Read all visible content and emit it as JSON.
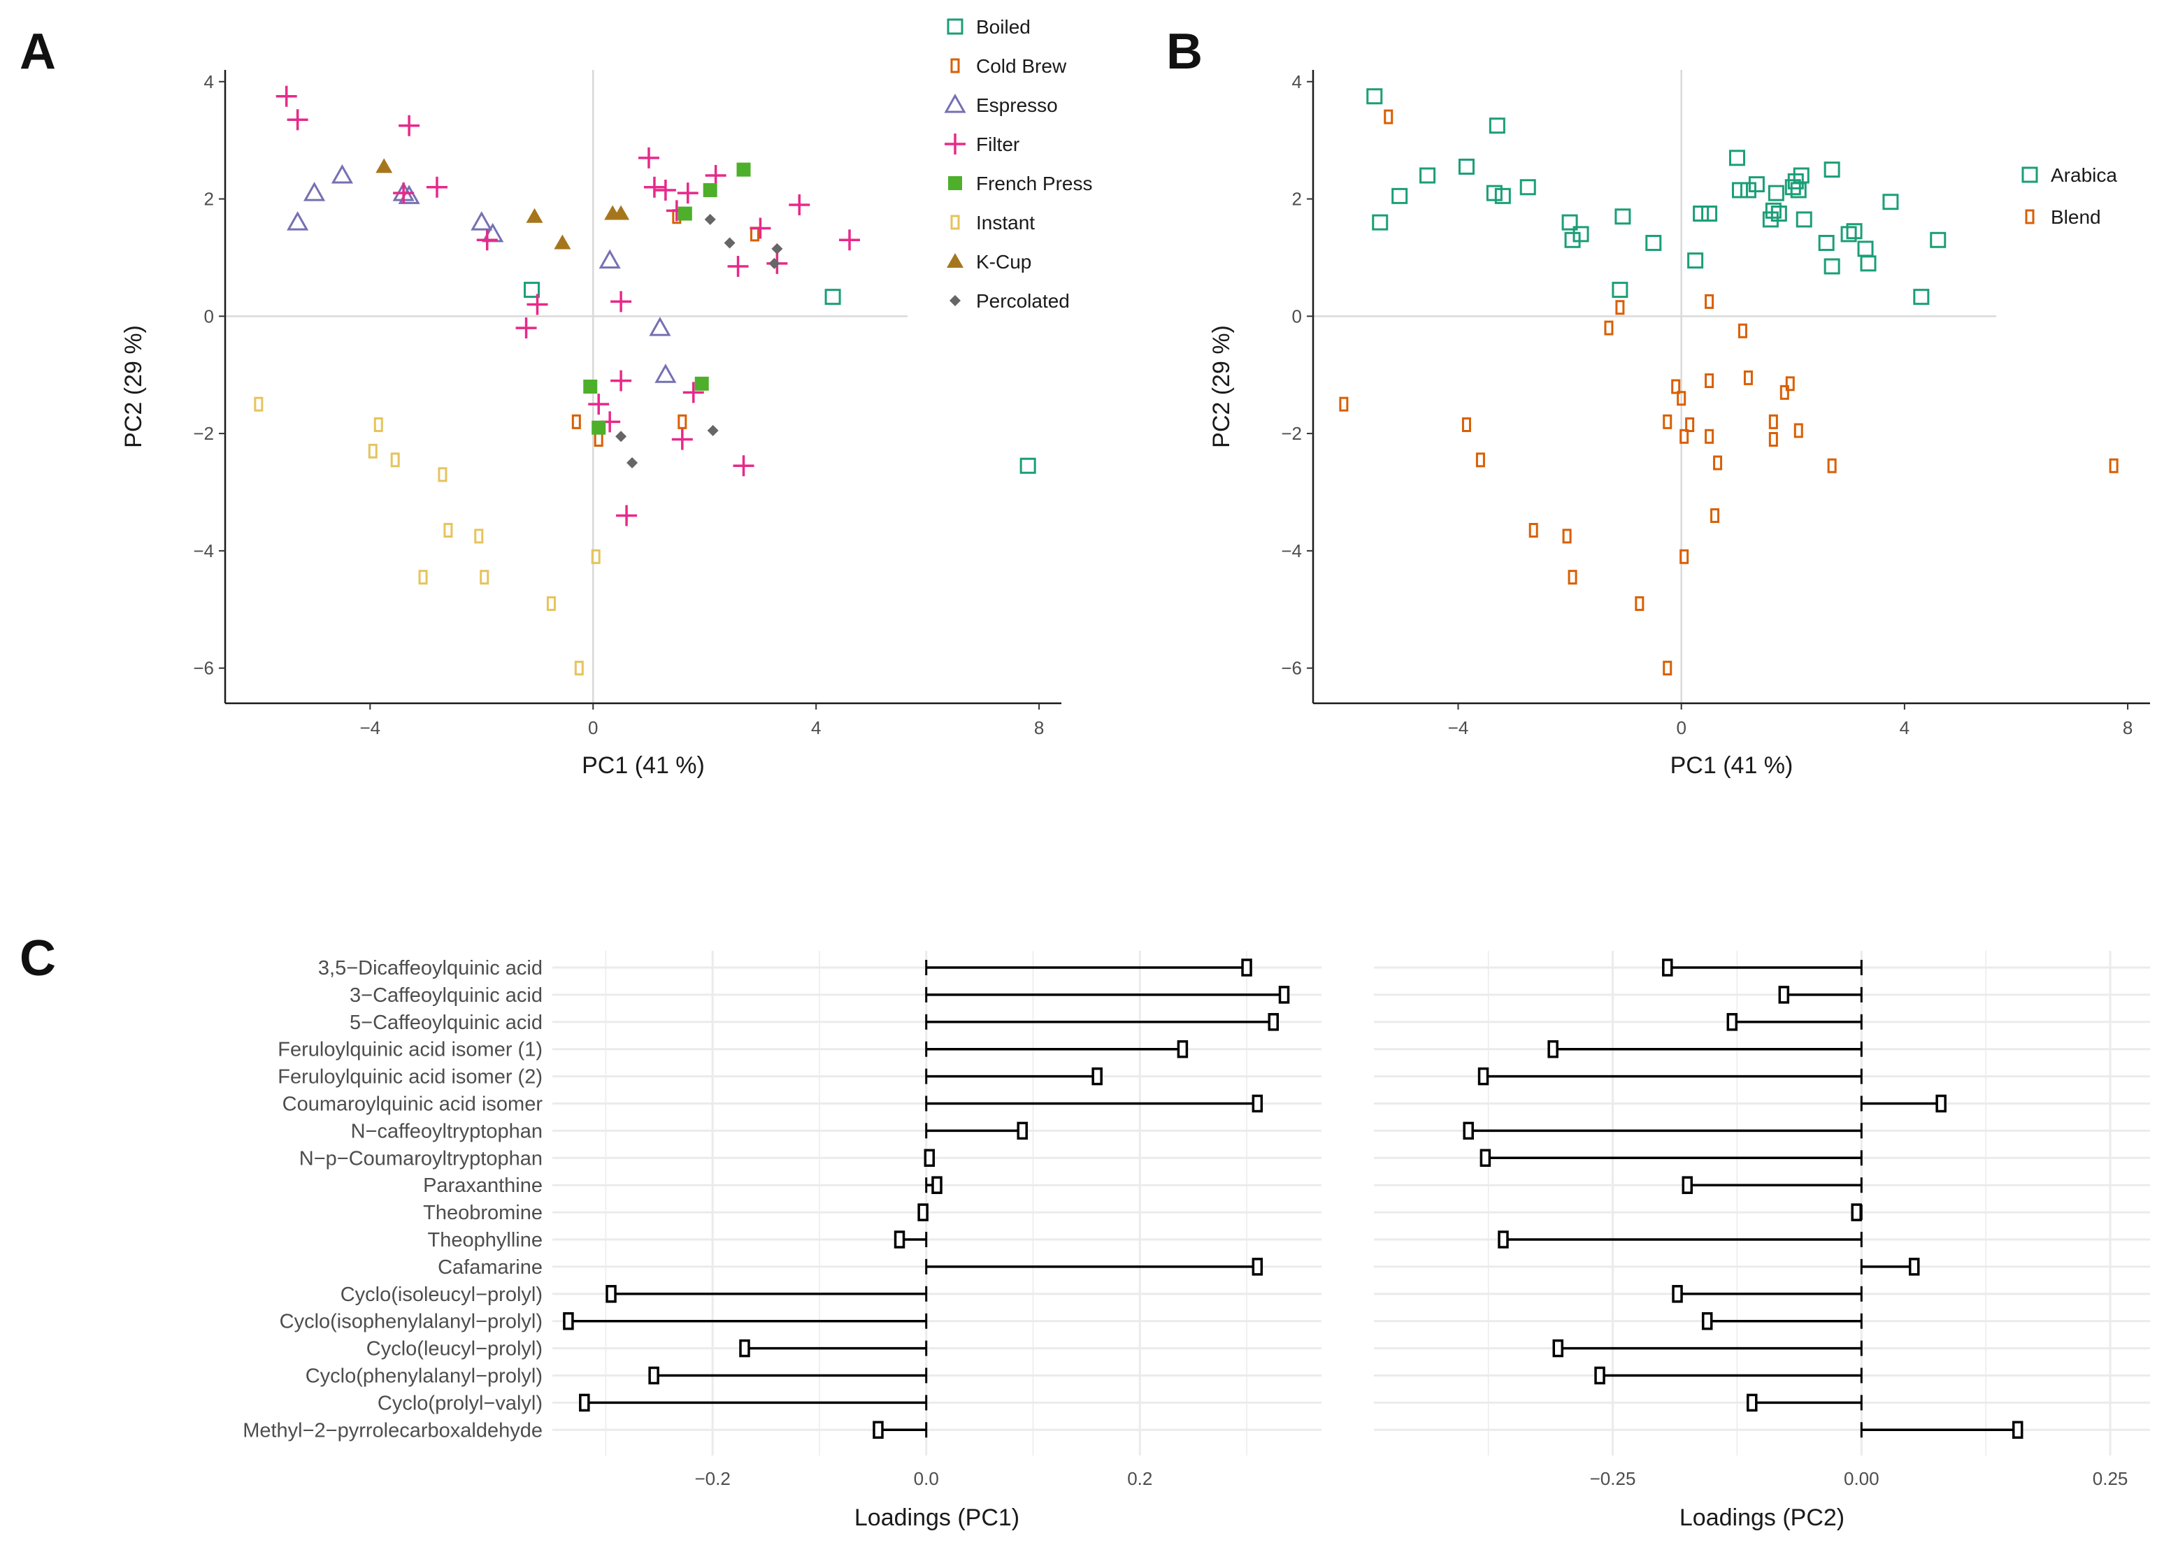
{
  "panels": {
    "a": "A",
    "b": "B",
    "c": "C"
  },
  "colors": {
    "Boiled": "#1b9e77",
    "Cold Brew": "#d95f02",
    "Espresso": "#7570b3",
    "Filter": "#e7298a",
    "French Press": "#4daf2a",
    "Instant": "#e6c35c",
    "K-Cup": "#a6761d",
    "Percolated": "#666666",
    "Arabica": "#1b9e77",
    "Blend": "#d95f02",
    "refline": "#d9d9d9",
    "grid": "#ebebeb"
  },
  "chart_data": [
    {
      "id": "A",
      "type": "scatter",
      "xlabel": "PC1 (41 %)",
      "ylabel": "PC2 (29 %)",
      "xlim": [
        -6.6,
        8.4
      ],
      "ylim": [
        -6.6,
        4.2
      ],
      "xticks": [
        -4,
        0,
        4,
        8
      ],
      "yticks": [
        -6,
        -4,
        -2,
        0,
        2,
        4
      ],
      "legend_position": "top-right",
      "series": [
        {
          "name": "Boiled",
          "marker": "square-open",
          "points": [
            [
              -1.1,
              0.45
            ],
            [
              4.3,
              0.33
            ],
            [
              7.8,
              -2.55
            ]
          ]
        },
        {
          "name": "Cold Brew",
          "marker": "rect-open",
          "points": [
            [
              -0.3,
              -1.8
            ],
            [
              0.1,
              -2.1
            ],
            [
              1.6,
              -1.8
            ],
            [
              1.5,
              1.7
            ],
            [
              2.9,
              1.4
            ]
          ]
        },
        {
          "name": "Espresso",
          "marker": "triangle-open",
          "points": [
            [
              -5.3,
              1.6
            ],
            [
              -5.0,
              2.1
            ],
            [
              -4.5,
              2.4
            ],
            [
              -3.4,
              2.1
            ],
            [
              -3.3,
              2.05
            ],
            [
              -2.0,
              1.6
            ],
            [
              -1.8,
              1.4
            ],
            [
              0.3,
              0.95
            ],
            [
              1.2,
              -0.2
            ],
            [
              1.3,
              -1.0
            ]
          ]
        },
        {
          "name": "Filter",
          "marker": "plus",
          "points": [
            [
              -5.5,
              3.75
            ],
            [
              -5.3,
              3.35
            ],
            [
              -3.3,
              3.25
            ],
            [
              -3.4,
              2.1
            ],
            [
              -2.8,
              2.2
            ],
            [
              -1.9,
              1.3
            ],
            [
              -1.2,
              -0.2
            ],
            [
              -1.0,
              0.2
            ],
            [
              1.0,
              2.7
            ],
            [
              1.1,
              2.2
            ],
            [
              1.3,
              2.15
            ],
            [
              1.7,
              2.1
            ],
            [
              2.2,
              2.4
            ],
            [
              1.5,
              1.8
            ],
            [
              3.0,
              1.5
            ],
            [
              3.3,
              0.9
            ],
            [
              3.7,
              1.9
            ],
            [
              4.6,
              1.3
            ],
            [
              2.6,
              0.85
            ],
            [
              0.5,
              0.25
            ],
            [
              0.5,
              -1.1
            ],
            [
              0.1,
              -1.5
            ],
            [
              0.3,
              -1.8
            ],
            [
              1.8,
              -1.3
            ],
            [
              1.6,
              -2.1
            ],
            [
              2.7,
              -2.55
            ],
            [
              0.6,
              -3.4
            ]
          ]
        },
        {
          "name": "French Press",
          "marker": "square-filled",
          "points": [
            [
              2.7,
              2.5
            ],
            [
              2.1,
              2.15
            ],
            [
              1.65,
              1.75
            ],
            [
              -0.05,
              -1.2
            ],
            [
              1.95,
              -1.15
            ],
            [
              0.1,
              -1.9
            ]
          ]
        },
        {
          "name": "Instant",
          "marker": "rect-open",
          "points": [
            [
              -6.0,
              -1.5
            ],
            [
              -3.85,
              -1.85
            ],
            [
              -3.95,
              -2.3
            ],
            [
              -3.55,
              -2.45
            ],
            [
              -2.7,
              -2.7
            ],
            [
              -2.6,
              -3.65
            ],
            [
              -2.05,
              -3.75
            ],
            [
              -3.05,
              -4.45
            ],
            [
              -1.95,
              -4.45
            ],
            [
              -0.75,
              -4.9
            ],
            [
              0.05,
              -4.1
            ],
            [
              -0.25,
              -6.0
            ]
          ]
        },
        {
          "name": "K-Cup",
          "marker": "triangle-filled",
          "points": [
            [
              -3.75,
              2.55
            ],
            [
              -1.05,
              1.7
            ],
            [
              -0.55,
              1.25
            ],
            [
              0.35,
              1.75
            ],
            [
              0.5,
              1.75
            ]
          ]
        },
        {
          "name": "Percolated",
          "marker": "diamond-filled",
          "points": [
            [
              2.1,
              1.65
            ],
            [
              2.45,
              1.25
            ],
            [
              3.3,
              1.15
            ],
            [
              3.25,
              0.9
            ],
            [
              0.5,
              -2.05
            ],
            [
              0.7,
              -2.5
            ],
            [
              2.15,
              -1.95
            ]
          ]
        }
      ]
    },
    {
      "id": "B",
      "type": "scatter",
      "xlabel": "PC1 (41 %)",
      "ylabel": "PC2 (29 %)",
      "xlim": [
        -6.6,
        8.4
      ],
      "ylim": [
        -6.6,
        4.2
      ],
      "xticks": [
        -4,
        0,
        4,
        8
      ],
      "yticks": [
        -6,
        -4,
        -2,
        0,
        2,
        4
      ],
      "legend_position": "right",
      "series": [
        {
          "name": "Arabica",
          "marker": "square-open",
          "points": [
            [
              -5.5,
              3.75
            ],
            [
              -5.4,
              1.6
            ],
            [
              -5.05,
              2.05
            ],
            [
              -4.55,
              2.4
            ],
            [
              -3.85,
              2.55
            ],
            [
              -3.3,
              3.25
            ],
            [
              -3.35,
              2.1
            ],
            [
              -3.2,
              2.05
            ],
            [
              -2.75,
              2.2
            ],
            [
              -2.0,
              1.6
            ],
            [
              -1.95,
              1.3
            ],
            [
              -1.8,
              1.4
            ],
            [
              -1.05,
              1.7
            ],
            [
              -0.5,
              1.25
            ],
            [
              -1.1,
              0.45
            ],
            [
              0.25,
              0.95
            ],
            [
              0.35,
              1.75
            ],
            [
              0.5,
              1.75
            ],
            [
              1.0,
              2.7
            ],
            [
              1.05,
              2.15
            ],
            [
              1.2,
              2.15
            ],
            [
              1.35,
              2.25
            ],
            [
              1.6,
              1.65
            ],
            [
              1.65,
              1.8
            ],
            [
              1.7,
              2.1
            ],
            [
              1.75,
              1.75
            ],
            [
              2.0,
              2.2
            ],
            [
              2.05,
              2.3
            ],
            [
              2.1,
              2.15
            ],
            [
              2.15,
              2.4
            ],
            [
              2.2,
              1.65
            ],
            [
              2.6,
              1.25
            ],
            [
              2.7,
              2.5
            ],
            [
              2.7,
              0.85
            ],
            [
              3.0,
              1.4
            ],
            [
              3.1,
              1.45
            ],
            [
              3.3,
              1.15
            ],
            [
              3.35,
              0.9
            ],
            [
              3.75,
              1.95
            ],
            [
              4.3,
              0.33
            ],
            [
              4.6,
              1.3
            ]
          ]
        },
        {
          "name": "Blend",
          "marker": "rect-open",
          "points": [
            [
              -5.25,
              3.4
            ],
            [
              -6.05,
              -1.5
            ],
            [
              -3.85,
              -1.85
            ],
            [
              -3.6,
              -2.45
            ],
            [
              -2.65,
              -3.65
            ],
            [
              -2.05,
              -3.75
            ],
            [
              -1.95,
              -4.45
            ],
            [
              -1.3,
              -0.2
            ],
            [
              -1.1,
              0.15
            ],
            [
              -0.75,
              -4.9
            ],
            [
              -0.25,
              -1.8
            ],
            [
              -0.25,
              -6.0
            ],
            [
              -0.1,
              -1.2
            ],
            [
              0.0,
              -1.4
            ],
            [
              0.05,
              -2.05
            ],
            [
              0.05,
              -4.1
            ],
            [
              0.15,
              -1.85
            ],
            [
              0.5,
              0.25
            ],
            [
              0.5,
              -1.1
            ],
            [
              0.5,
              -2.05
            ],
            [
              0.65,
              -2.5
            ],
            [
              0.6,
              -3.4
            ],
            [
              1.1,
              -0.25
            ],
            [
              1.2,
              -1.05
            ],
            [
              1.65,
              -1.8
            ],
            [
              1.65,
              -2.1
            ],
            [
              1.85,
              -1.3
            ],
            [
              1.95,
              -1.15
            ],
            [
              2.1,
              -1.95
            ],
            [
              2.7,
              -2.55
            ],
            [
              7.75,
              -2.55
            ]
          ]
        }
      ]
    },
    {
      "id": "C-PC1",
      "type": "bar",
      "orientation": "horizontal",
      "xlabel": "Loadings (PC1)",
      "ylabel": "",
      "xlim": [
        -0.35,
        0.37
      ],
      "xticks": [
        -0.2,
        0.0,
        0.2
      ],
      "xtick_labels": [
        "-0.2",
        "0.0",
        "0.2"
      ],
      "categories": [
        "3,5-Dicaffeoylquinic acid",
        "3-Caffeoylquinic acid",
        "5-Caffeoylquinic acid",
        "Feruloylquinic acid isomer (1)",
        "Feruloylquinic acid isomer (2)",
        "Coumaroylquinic acid isomer",
        "N-caffeoyltryptophan",
        "N-p-Coumaroyltryptophan",
        "Paraxanthine",
        "Theobromine",
        "Theophylline",
        "Cafamarine",
        "Cyclo(isoleucyl-prolyl)",
        "Cyclo(isophenylalanyl-prolyl)",
        "Cyclo(leucyl-prolyl)",
        "Cyclo(phenylalanyl-prolyl)",
        "Cyclo(prolyl-valyl)",
        "Methyl-2-pyrrolecarboxaldehyde"
      ],
      "values": [
        0.3,
        0.335,
        0.325,
        0.24,
        0.16,
        0.31,
        0.09,
        0.003,
        0.01,
        -0.003,
        -0.025,
        0.31,
        -0.295,
        -0.335,
        -0.17,
        -0.255,
        -0.32,
        -0.045
      ]
    },
    {
      "id": "C-PC2",
      "type": "bar",
      "orientation": "horizontal",
      "xlabel": "Loadings (PC2)",
      "ylabel": "",
      "xlim": [
        -0.49,
        0.29
      ],
      "xticks": [
        -0.25,
        0.0,
        0.25
      ],
      "xtick_labels": [
        "-0.25",
        "0.00",
        "0.25"
      ],
      "categories": [
        "3,5-Dicaffeoylquinic acid",
        "3-Caffeoylquinic acid",
        "5-Caffeoylquinic acid",
        "Feruloylquinic acid isomer (1)",
        "Feruloylquinic acid isomer (2)",
        "Coumaroylquinic acid isomer",
        "N-caffeoyltryptophan",
        "N-p-Coumaroyltryptophan",
        "Paraxanthine",
        "Theobromine",
        "Theophylline",
        "Cafamarine",
        "Cyclo(isoleucyl-prolyl)",
        "Cyclo(isophenylalanyl-prolyl)",
        "Cyclo(leucyl-prolyl)",
        "Cyclo(phenylalanyl-prolyl)",
        "Cyclo(prolyl-valyl)",
        "Methyl-2-pyrrolecarboxaldehyde"
      ],
      "values": [
        -0.195,
        -0.078,
        -0.13,
        -0.31,
        -0.38,
        0.08,
        -0.395,
        -0.378,
        -0.175,
        -0.005,
        -0.36,
        0.053,
        -0.185,
        -0.155,
        -0.305,
        -0.263,
        -0.11,
        0.157
      ]
    }
  ]
}
